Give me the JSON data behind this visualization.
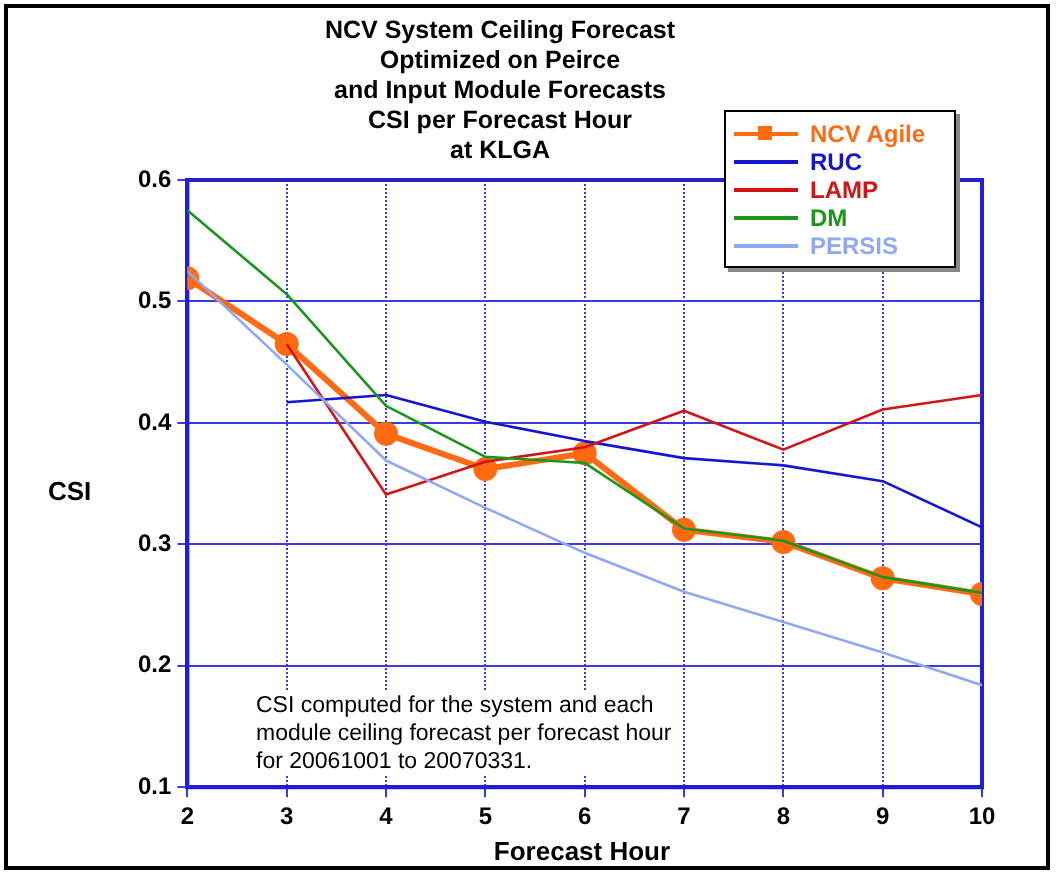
{
  "chart_data": {
    "type": "line",
    "title": "NCV System Ceiling Forecast\nOptimized on Peirce\nand Input Module Forecasts\nCSI  per Forecast Hour\nat KLGA",
    "xlabel": "Forecast Hour",
    "ylabel": "CSI",
    "x": [
      2,
      3,
      4,
      5,
      6,
      7,
      8,
      9,
      10
    ],
    "series": [
      {
        "name": "NCV Agile",
        "color": "#ff6a13",
        "marker": "circle",
        "values": [
          0.519,
          0.465,
          0.391,
          0.362,
          0.375,
          0.312,
          0.302,
          0.272,
          0.259
        ]
      },
      {
        "name": "RUC",
        "color": "#1414d2",
        "marker": "none",
        "values": [
          null,
          0.417,
          0.423,
          0.401,
          0.385,
          0.371,
          0.365,
          0.352,
          0.314
        ]
      },
      {
        "name": "LAMP",
        "color": "#d21414",
        "marker": "none",
        "values": [
          null,
          0.465,
          0.341,
          0.368,
          0.38,
          0.41,
          0.378,
          0.411,
          0.423
        ]
      },
      {
        "name": "DM",
        "color": "#1a961a",
        "marker": "none",
        "values": [
          0.575,
          0.506,
          0.414,
          0.372,
          0.367,
          0.313,
          0.303,
          0.273,
          0.26
        ]
      },
      {
        "name": "PERSIS",
        "color": "#8fa8f5",
        "marker": "none",
        "values": [
          0.525,
          0.448,
          0.369,
          0.33,
          0.293,
          0.261,
          0.236,
          0.211,
          0.184
        ]
      }
    ],
    "xlim": [
      2,
      10
    ],
    "xticks": [
      2,
      3,
      4,
      5,
      6,
      7,
      8,
      9,
      10
    ],
    "ylim": [
      0.1,
      0.6
    ],
    "yticks": [
      0.1,
      0.2,
      0.3,
      0.4,
      0.5,
      0.6
    ],
    "grid": true,
    "legend": "top right",
    "line_style": "solid",
    "annotations": [
      "CSI computed for the system and each\nmodule ceiling forecast per forecast hour\nfor 20061001 to 20070331."
    ]
  }
}
